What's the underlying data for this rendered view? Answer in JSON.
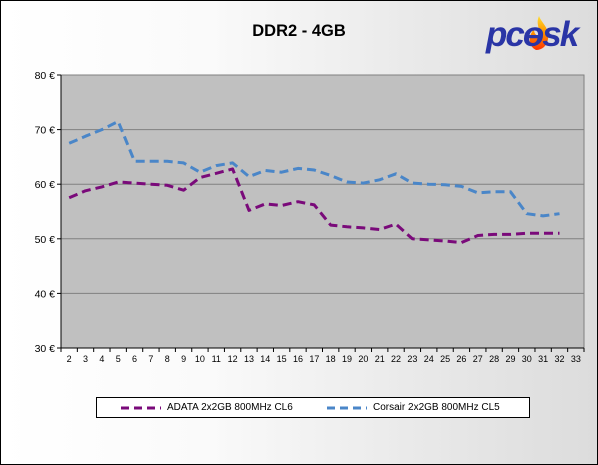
{
  "header": {
    "logo_text": "pcɵsk"
  },
  "chart_data": {
    "type": "line",
    "title": "DDR2 - 4GB",
    "xlabel": "",
    "ylabel": "",
    "x": [
      2,
      3,
      4,
      5,
      6,
      7,
      8,
      9,
      10,
      11,
      12,
      13,
      14,
      15,
      16,
      17,
      18,
      19,
      20,
      21,
      22,
      23,
      24,
      25,
      26,
      27,
      28,
      29,
      30,
      31,
      32
    ],
    "x_ticks": [
      "2",
      "3",
      "4",
      "5",
      "6",
      "7",
      "8",
      "9",
      "10",
      "11",
      "12",
      "13",
      "14",
      "15",
      "16",
      "17",
      "18",
      "19",
      "20",
      "21",
      "22",
      "23",
      "24",
      "25",
      "26",
      "27",
      "28",
      "29",
      "30",
      "31",
      "32",
      "33"
    ],
    "xlim": [
      2,
      33
    ],
    "ylim": [
      30,
      80
    ],
    "y_ticks": [
      30,
      40,
      50,
      60,
      70,
      80
    ],
    "y_tick_labels": [
      "30 €",
      "40 €",
      "50 €",
      "60 €",
      "70 €",
      "80 €"
    ],
    "grid": "horizontal",
    "legend_position": "bottom",
    "series": [
      {
        "name": "ADATA 2x2GB 800MHz CL6",
        "color": "#7a0a7a",
        "values": [
          57.5,
          58.8,
          59.5,
          60.4,
          60.2,
          60.0,
          59.8,
          58.9,
          61.2,
          62.0,
          62.8,
          55.2,
          56.4,
          56.1,
          56.8,
          56.2,
          52.5,
          52.2,
          52.0,
          51.7,
          52.7,
          50.0,
          49.8,
          49.6,
          49.3,
          50.6,
          50.8,
          50.8,
          51.0,
          51.0,
          51.0
        ]
      },
      {
        "name": "Corsair 2x2GB 800MHz CL5",
        "color": "#4a86c8",
        "values": [
          67.5,
          68.8,
          70.0,
          71.5,
          64.2,
          64.2,
          64.2,
          63.9,
          62.2,
          63.4,
          63.9,
          61.4,
          62.5,
          62.2,
          62.9,
          62.6,
          61.6,
          60.4,
          60.2,
          60.8,
          61.9,
          60.2,
          60.0,
          59.9,
          59.6,
          58.4,
          58.6,
          58.6,
          54.6,
          54.2,
          54.6
        ]
      }
    ]
  }
}
